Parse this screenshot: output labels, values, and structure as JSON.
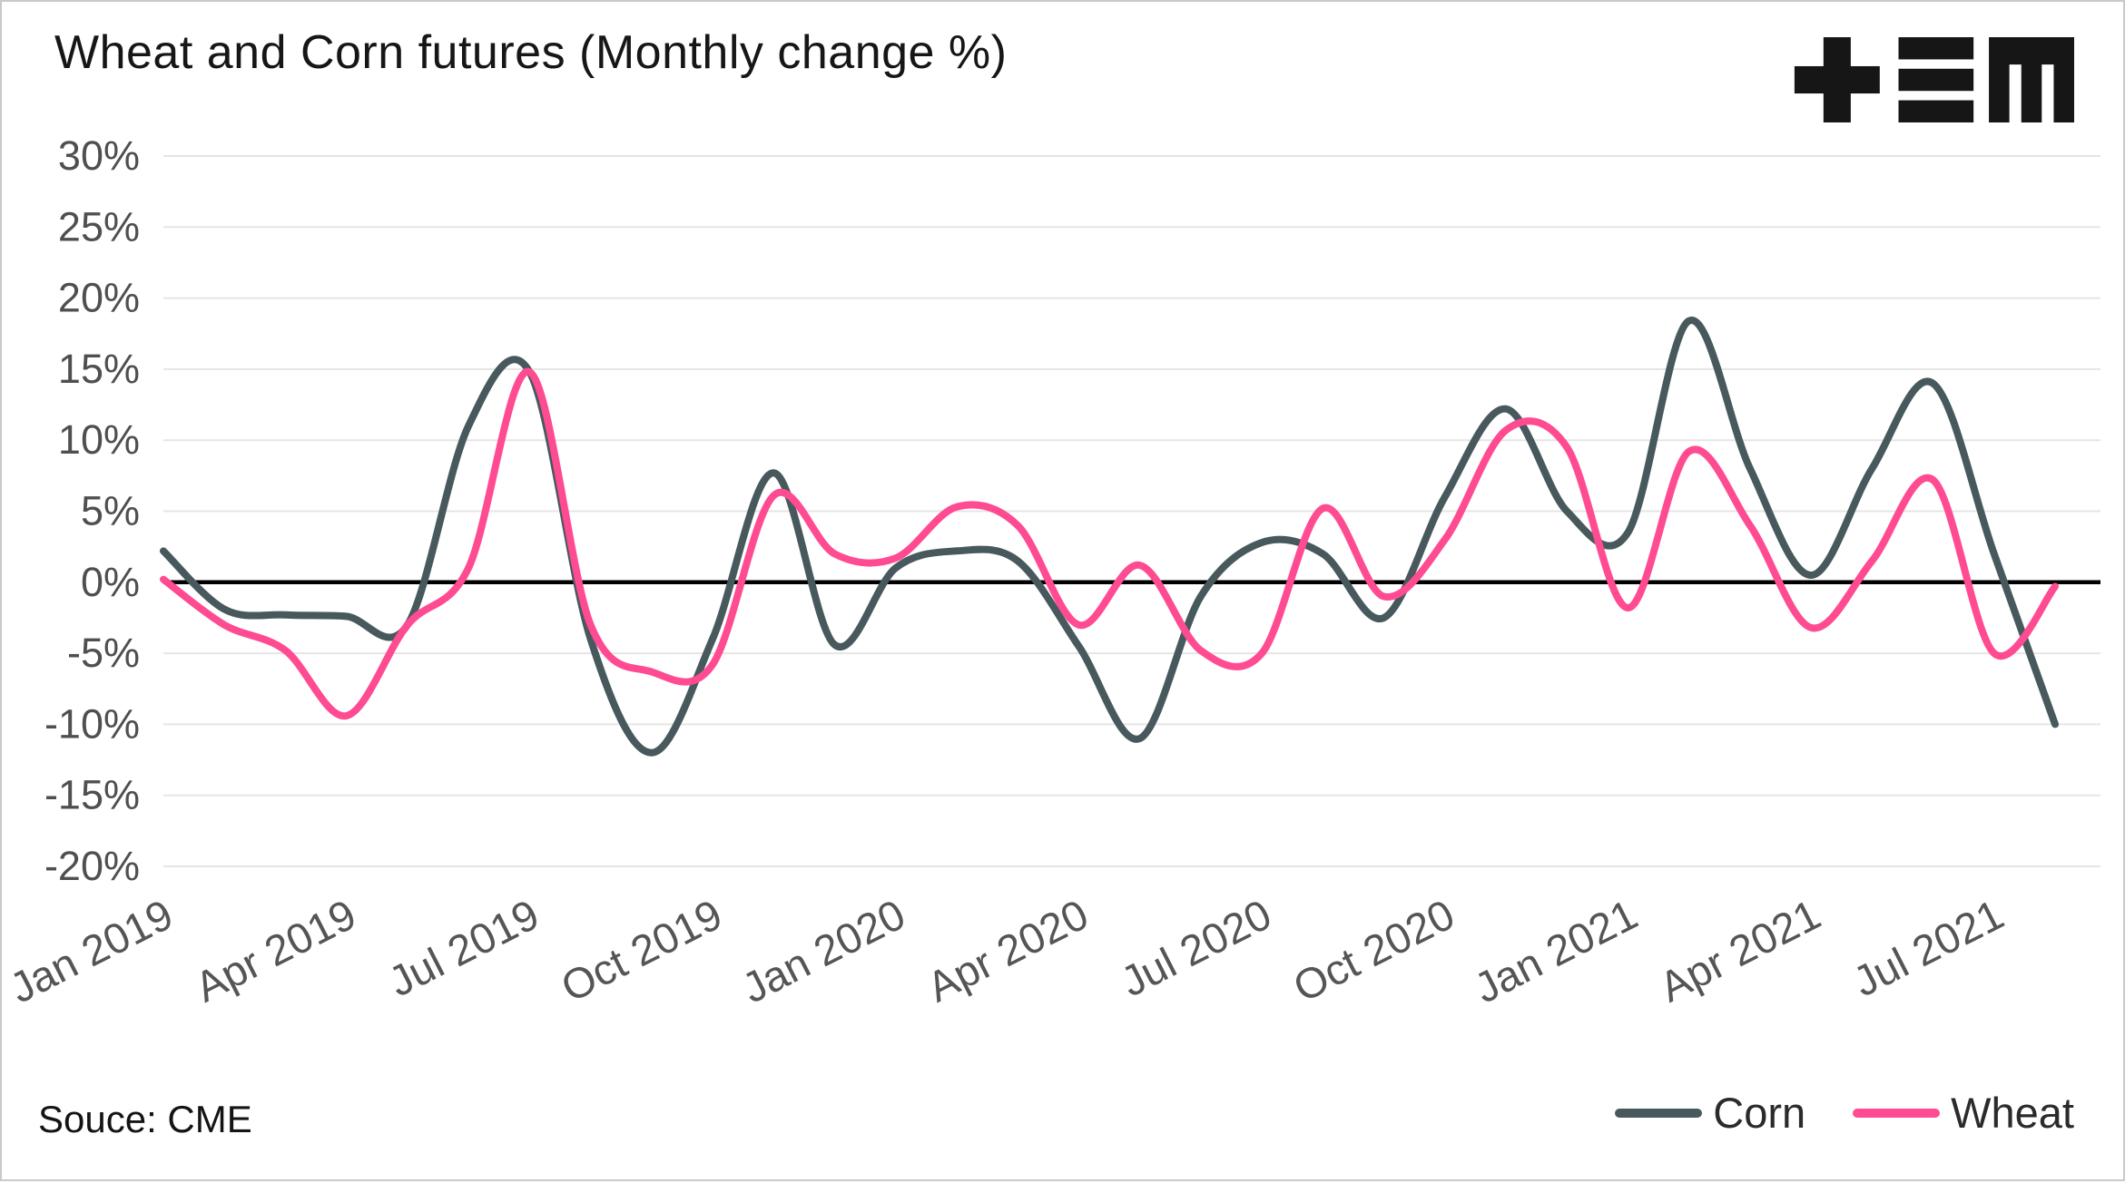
{
  "header": {
    "title": "Wheat and Corn futures (Monthly change %)"
  },
  "footer": {
    "source": "Souce: CME"
  },
  "logo": {
    "color": "#161616"
  },
  "colors": {
    "grid": "#e5e5e5",
    "zero_line": "#000000",
    "axis_text": "#4f4f4f",
    "x_axis_text": "#555555",
    "background": "#ffffff"
  },
  "chart_data": {
    "type": "line",
    "title": "Wheat and Corn futures (Monthly change %)",
    "source": "Souce: CME",
    "grid": "horizontal",
    "zero_line": true,
    "legend_position": "bottom-right",
    "ylim": [
      -20,
      30
    ],
    "y_tick_step": 5,
    "y_tick_suffix": "%",
    "x": [
      "Jan 2019",
      "Feb 2019",
      "Mar 2019",
      "Apr 2019",
      "May 2019",
      "Jun 2019",
      "Jul 2019",
      "Aug 2019",
      "Sep 2019",
      "Oct 2019",
      "Nov 2019",
      "Dec 2019",
      "Jan 2020",
      "Feb 2020",
      "Mar 2020",
      "Apr 2020",
      "May 2020",
      "Jun 2020",
      "Jul 2020",
      "Aug 2020",
      "Sep 2020",
      "Oct 2020",
      "Nov 2020",
      "Dec 2020",
      "Jan 2021",
      "Feb 2021",
      "Mar 2021",
      "Apr 2021",
      "May 2021",
      "Jun 2021",
      "Jul 2021",
      "Aug 2021"
    ],
    "x_tick_labels": [
      "Jan 2019",
      "Apr 2019",
      "Jul 2019",
      "Oct 2019",
      "Jan 2020",
      "Apr 2020",
      "Jul 2020",
      "Oct 2020",
      "Jan 2021",
      "Apr 2021",
      "Jul 2021"
    ],
    "x_tick_indices": [
      0,
      3,
      6,
      9,
      12,
      15,
      18,
      21,
      24,
      27,
      30
    ],
    "series": [
      {
        "name": "Corn",
        "color": "#47595c",
        "values": [
          2.2,
          -1.9,
          -2.3,
          -2.4,
          -3.0,
          11.0,
          14.8,
          -4.0,
          -12.0,
          -4.0,
          7.7,
          -4.4,
          1.0,
          2.2,
          1.5,
          -4.5,
          -11.0,
          -1.0,
          2.8,
          2.0,
          -2.5,
          6.0,
          12.2,
          5.0,
          3.5,
          18.4,
          8.0,
          0.5,
          8.0,
          14.0,
          2.0,
          -10.0
        ]
      },
      {
        "name": "Wheat",
        "color": "#ff4b91",
        "values": [
          0.2,
          -3.0,
          -4.8,
          -9.4,
          -3.0,
          1.0,
          14.8,
          -3.0,
          -6.3,
          -5.8,
          6.1,
          2.0,
          1.7,
          5.3,
          4.0,
          -3.0,
          1.2,
          -4.8,
          -5.0,
          5.2,
          -1.0,
          3.0,
          10.7,
          9.5,
          -1.8,
          9.2,
          4.0,
          -3.2,
          1.5,
          7.2,
          -5.0,
          -0.3
        ]
      }
    ]
  }
}
